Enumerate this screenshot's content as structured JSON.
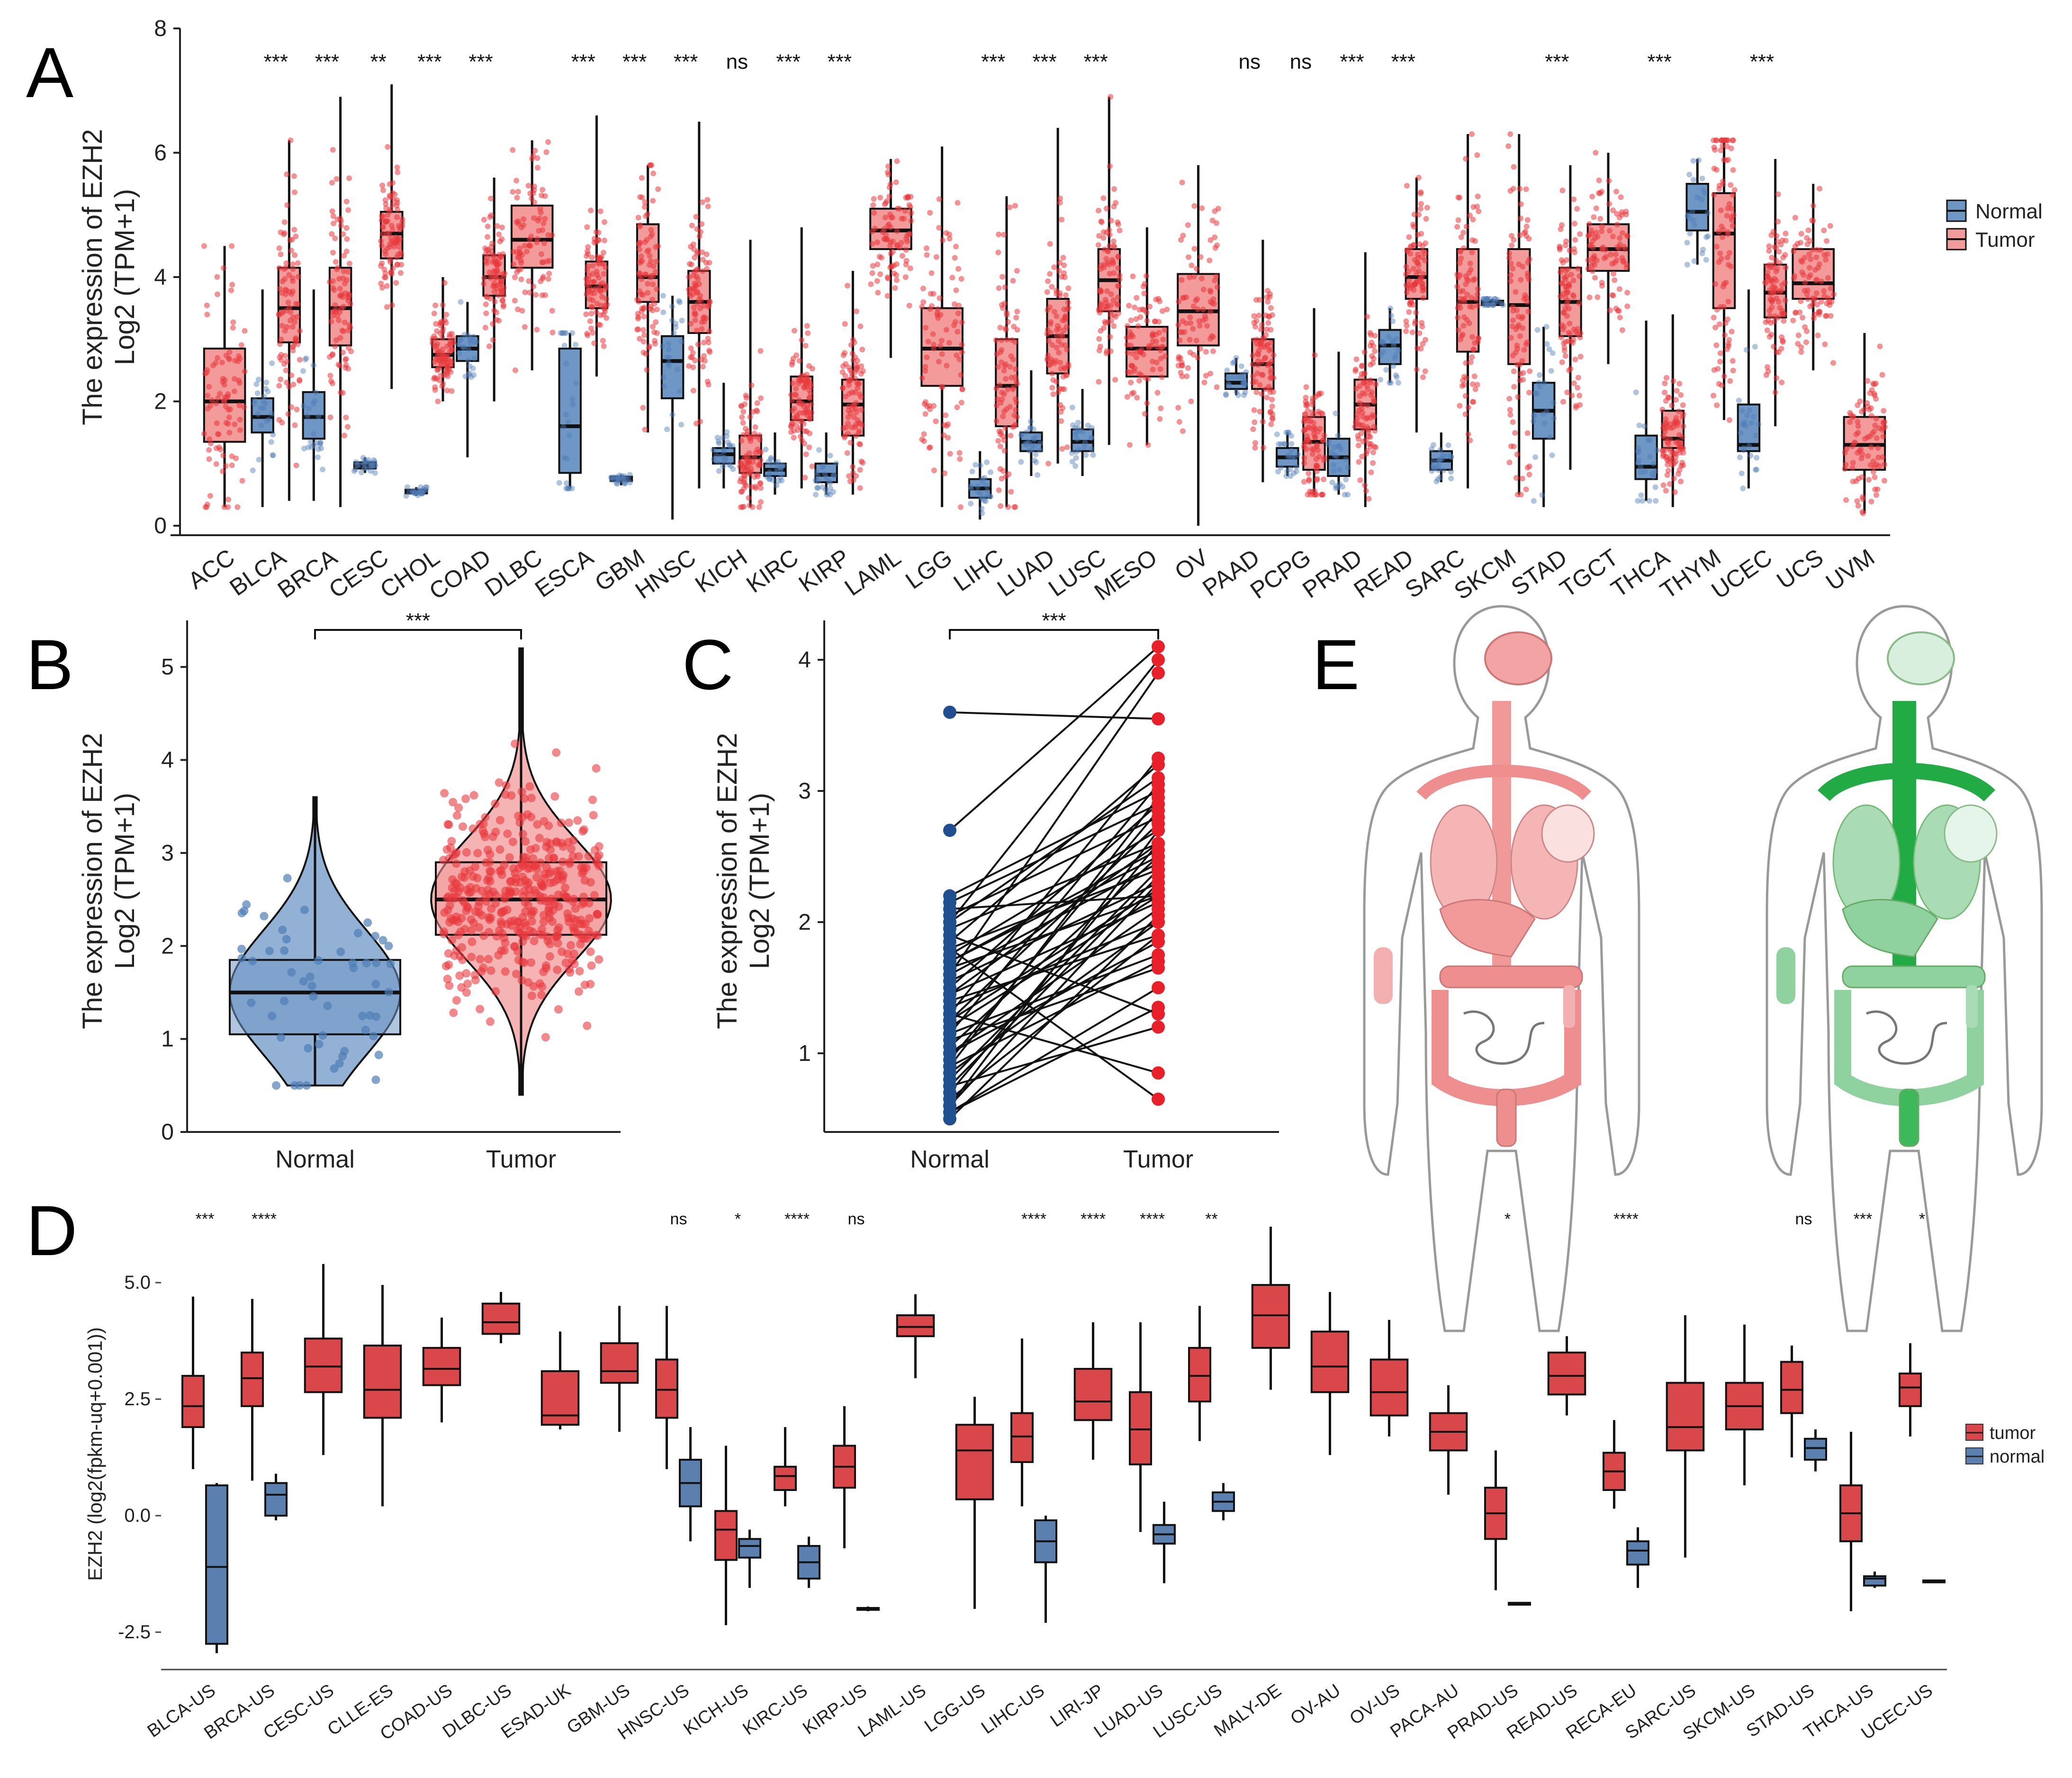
{
  "panels": {
    "A": "A",
    "B": "B",
    "C": "C",
    "D": "D",
    "E": "E"
  },
  "colors": {
    "normal": "#4f7db5",
    "tumor": "#e8383d",
    "normal_dark": "#1f4f8f",
    "tumor_light": "#f39a9a",
    "green": "#22aa44",
    "green_light": "#a9dcb5"
  },
  "chart_data": [
    {
      "id": "A",
      "type": "box",
      "ylabel_line1": "The expression of EZH2",
      "ylabel_line2": "Log2 (TPM+1)",
      "ylim": [
        0,
        8
      ],
      "yticks": [
        0,
        2,
        4,
        6,
        8
      ],
      "legend": {
        "title": "",
        "entries": [
          "Normal",
          "Tumor"
        ],
        "placement": "right"
      },
      "categories": [
        "ACC",
        "BLCA",
        "BRCA",
        "CESC",
        "CHOL",
        "COAD",
        "DLBC",
        "ESCA",
        "GBM",
        "HNSC",
        "KICH",
        "KIRC",
        "KIRP",
        "LAML",
        "LGG",
        "LIHC",
        "LUAD",
        "LUSC",
        "MESO",
        "OV",
        "PAAD",
        "PCPG",
        "PRAD",
        "READ",
        "SARC",
        "SKCM",
        "STAD",
        "TGCT",
        "THCA",
        "THYM",
        "UCEC",
        "UCS",
        "UVM"
      ],
      "significance": [
        "",
        "***",
        "***",
        "**",
        "***",
        "***",
        "",
        "***",
        "***",
        "***",
        "ns",
        "***",
        "***",
        "",
        "",
        "***",
        "***",
        "***",
        "",
        "",
        "ns",
        "ns",
        "***",
        "***",
        "",
        "",
        "***",
        "",
        "***",
        "",
        "***",
        "",
        ""
      ],
      "normal": [
        null,
        [
          0.3,
          1.5,
          1.75,
          2.05,
          3.8
        ],
        [
          0.4,
          1.4,
          1.75,
          2.15,
          3.8
        ],
        [
          0.85,
          0.92,
          0.97,
          1.02,
          1.1
        ],
        [
          0.48,
          0.52,
          0.55,
          0.58,
          0.62
        ],
        [
          1.1,
          2.65,
          2.85,
          3.05,
          3.6
        ],
        null,
        [
          0.6,
          0.85,
          1.6,
          2.85,
          3.1
        ],
        [
          0.65,
          0.72,
          0.76,
          0.79,
          0.82
        ],
        [
          0.1,
          2.05,
          2.65,
          3.05,
          3.7
        ],
        [
          0.6,
          1.0,
          1.15,
          1.25,
          2.3
        ],
        [
          0.5,
          0.8,
          0.9,
          1.0,
          1.5
        ],
        [
          0.5,
          0.7,
          0.82,
          1.0,
          1.5
        ],
        null,
        null,
        [
          0.1,
          0.45,
          0.6,
          0.75,
          1.2
        ],
        [
          0.8,
          1.2,
          1.35,
          1.5,
          2.5
        ],
        [
          0.8,
          1.2,
          1.35,
          1.55,
          2.2
        ],
        null,
        null,
        [
          2.1,
          2.2,
          2.3,
          2.45,
          2.7
        ],
        [
          0.8,
          0.95,
          1.1,
          1.25,
          1.5
        ],
        [
          0.5,
          0.8,
          1.1,
          1.4,
          2.8
        ],
        [
          2.3,
          2.6,
          2.9,
          3.15,
          3.5
        ],
        [
          0.7,
          0.9,
          1.05,
          1.2,
          1.5
        ],
        [
          3.55,
          3.55,
          3.6,
          3.62,
          3.65
        ],
        [
          0.3,
          1.4,
          1.85,
          2.3,
          3.2
        ],
        null,
        [
          0.4,
          0.75,
          0.95,
          1.45,
          3.3
        ],
        [
          4.2,
          4.75,
          5.05,
          5.5,
          5.9
        ],
        [
          0.6,
          1.2,
          1.3,
          1.95,
          3.8
        ],
        null,
        null
      ],
      "tumor": [
        [
          0.3,
          1.35,
          2.0,
          2.85,
          4.5
        ],
        [
          0.4,
          2.95,
          3.5,
          4.15,
          6.2
        ],
        [
          0.3,
          2.9,
          3.5,
          4.15,
          6.9
        ],
        [
          2.2,
          4.3,
          4.7,
          5.05,
          7.1
        ],
        [
          2.0,
          2.55,
          2.75,
          3.0,
          4.0
        ],
        [
          2.0,
          3.7,
          4.0,
          4.35,
          5.6
        ],
        [
          2.5,
          4.15,
          4.6,
          5.15,
          6.2
        ],
        [
          2.4,
          3.5,
          3.85,
          4.25,
          6.6
        ],
        [
          1.5,
          3.6,
          4.0,
          4.85,
          5.8
        ],
        [
          0.6,
          3.1,
          3.6,
          4.1,
          6.5
        ],
        [
          0.3,
          0.85,
          1.1,
          1.45,
          4.6
        ],
        [
          0.6,
          1.7,
          2.0,
          2.4,
          4.8
        ],
        [
          0.5,
          1.45,
          1.95,
          2.35,
          4.1
        ],
        [
          2.7,
          4.45,
          4.75,
          5.1,
          5.9
        ],
        [
          0.3,
          2.25,
          2.85,
          3.5,
          6.1
        ],
        [
          0.3,
          1.6,
          2.25,
          3.0,
          5.3
        ],
        [
          1.0,
          2.45,
          3.05,
          3.65,
          6.4
        ],
        [
          1.3,
          3.45,
          3.95,
          4.45,
          6.9
        ],
        [
          1.3,
          2.4,
          2.85,
          3.2,
          4.8
        ],
        [
          0.0,
          2.9,
          3.45,
          4.05,
          5.8
        ],
        [
          0.7,
          2.2,
          2.6,
          3.0,
          4.6
        ],
        [
          0.5,
          0.9,
          1.35,
          1.75,
          3.5
        ],
        [
          0.3,
          1.55,
          1.95,
          2.35,
          4.4
        ],
        [
          1.5,
          3.65,
          4.0,
          4.45,
          5.6
        ],
        [
          0.6,
          2.8,
          3.6,
          4.45,
          6.3
        ],
        [
          0.5,
          2.6,
          3.55,
          4.45,
          6.3
        ],
        [
          0.9,
          3.05,
          3.6,
          4.15,
          5.8
        ],
        [
          2.6,
          4.1,
          4.45,
          4.85,
          6.0
        ],
        [
          0.3,
          1.25,
          1.4,
          1.85,
          3.4
        ],
        [
          1.7,
          3.5,
          4.7,
          5.35,
          6.2
        ],
        [
          1.6,
          3.35,
          3.75,
          4.2,
          5.9
        ],
        [
          2.5,
          3.65,
          3.9,
          4.45,
          5.5
        ],
        [
          0.2,
          0.9,
          1.3,
          1.75,
          3.1
        ]
      ]
    },
    {
      "id": "B",
      "type": "violin-box",
      "ylabel_line1": "The expression of EZH2",
      "ylabel_line2": "Log2 (TPM+1)",
      "ylim": [
        0,
        5.5
      ],
      "yticks": [
        0,
        1,
        2,
        3,
        4,
        5
      ],
      "categories": [
        "Normal",
        "Tumor"
      ],
      "significance": "***",
      "normal": [
        0.5,
        1.05,
        1.5,
        1.85,
        3.6
      ],
      "tumor": [
        0.4,
        2.12,
        2.5,
        2.9,
        5.2
      ]
    },
    {
      "id": "C",
      "type": "paired-line",
      "ylabel_line1": "The expression of EZH2",
      "ylabel_line2": "Log2 (TPM+1)",
      "ylim": [
        0.4,
        4.3
      ],
      "yticks": [
        1,
        2,
        3,
        4
      ],
      "categories": [
        "Normal",
        "Tumor"
      ],
      "significance": "***",
      "pairs": [
        [
          3.6,
          3.55
        ],
        [
          2.7,
          4.1
        ],
        [
          2.2,
          3.0
        ],
        [
          2.15,
          2.9
        ],
        [
          2.1,
          2.2
        ],
        [
          2.05,
          2.8
        ],
        [
          2.0,
          4.0
        ],
        [
          1.95,
          2.6
        ],
        [
          1.9,
          1.3
        ],
        [
          1.85,
          3.2
        ],
        [
          1.8,
          2.4
        ],
        [
          1.75,
          2.7
        ],
        [
          1.7,
          2.5
        ],
        [
          1.65,
          2.2
        ],
        [
          1.6,
          3.9
        ],
        [
          1.55,
          2.3
        ],
        [
          1.5,
          2.9
        ],
        [
          1.45,
          2.6
        ],
        [
          1.4,
          1.9
        ],
        [
          1.35,
          2.0
        ],
        [
          1.3,
          0.85
        ],
        [
          1.25,
          2.75
        ],
        [
          1.2,
          2.2
        ],
        [
          1.15,
          3.05
        ],
        [
          1.1,
          1.65
        ],
        [
          1.05,
          2.5
        ],
        [
          1.0,
          2.1
        ],
        [
          0.95,
          2.85
        ],
        [
          0.9,
          1.7
        ],
        [
          0.85,
          2.0
        ],
        [
          0.8,
          2.4
        ],
        [
          0.75,
          1.2
        ],
        [
          0.7,
          2.6
        ],
        [
          0.65,
          1.9
        ],
        [
          0.6,
          2.3
        ],
        [
          0.55,
          1.5
        ],
        [
          0.5,
          2.05
        ],
        [
          1.8,
          0.65
        ],
        [
          1.3,
          3.25
        ],
        [
          0.9,
          2.95
        ],
        [
          1.6,
          2.45
        ],
        [
          1.0,
          1.85
        ],
        [
          0.6,
          2.7
        ],
        [
          1.45,
          2.15
        ],
        [
          2.0,
          3.1
        ],
        [
          0.75,
          2.35
        ],
        [
          1.15,
          1.75
        ],
        [
          1.7,
          2.55
        ],
        [
          0.55,
          1.35
        ],
        [
          1.25,
          2.25
        ]
      ]
    },
    {
      "id": "D",
      "type": "box",
      "ylabel": "EZH2 (log2(fpkm-uq+0.001))",
      "ylim": [
        -3.2,
        6.2
      ],
      "yticks": [
        -2.5,
        0.0,
        2.5,
        5.0
      ],
      "ytick_labels": [
        "-2.5",
        "0.0",
        "2.5",
        "5.0"
      ],
      "legend": {
        "entries": [
          "tumor",
          "normal"
        ],
        "placement": "right"
      },
      "categories": [
        "BLCA-US",
        "BRCA-US",
        "CESC-US",
        "CLLE-ES",
        "COAD-US",
        "DLBC-US",
        "ESAD-UK",
        "GBM-US",
        "HNSC-US",
        "KICH-US",
        "KIRC-US",
        "KIRP-US",
        "LAML-US",
        "LGG-US",
        "LIHC-US",
        "LIRI-JP",
        "LUAD-US",
        "LUSC-US",
        "MALY-DE",
        "OV-AU",
        "OV-US",
        "PACA-AU",
        "PRAD-US",
        "READ-US",
        "RECA-EU",
        "SARC-US",
        "SKCM-US",
        "STAD-US",
        "THCA-US",
        "UCEC-US"
      ],
      "significance": [
        "***",
        "****",
        "",
        "",
        "",
        "",
        "",
        "",
        "ns",
        "*",
        "****",
        "ns",
        "",
        "",
        "****",
        "****",
        "****",
        "**",
        "",
        "",
        "",
        "",
        "*",
        "",
        "****",
        "",
        "",
        "ns",
        "***",
        "*"
      ],
      "tumor": [
        [
          1.0,
          1.9,
          2.35,
          3.0,
          4.7
        ],
        [
          0.75,
          2.35,
          2.95,
          3.5,
          4.65
        ],
        [
          1.3,
          2.65,
          3.2,
          3.8,
          5.4
        ],
        [
          0.2,
          2.1,
          2.7,
          3.65,
          4.95
        ],
        [
          2.0,
          2.8,
          3.15,
          3.6,
          4.25
        ],
        [
          3.7,
          3.9,
          4.15,
          4.55,
          4.8
        ],
        [
          1.85,
          1.95,
          2.15,
          3.1,
          3.95
        ],
        [
          1.8,
          2.85,
          3.1,
          3.7,
          4.5
        ],
        [
          1.0,
          2.1,
          2.7,
          3.35,
          4.5
        ],
        [
          -2.35,
          -0.95,
          -0.3,
          0.1,
          1.5
        ],
        [
          0.2,
          0.55,
          0.85,
          1.05,
          1.9
        ],
        [
          -0.7,
          0.6,
          1.05,
          1.5,
          2.35
        ],
        [
          2.95,
          3.85,
          4.05,
          4.3,
          4.75
        ],
        [
          -2.0,
          0.35,
          1.4,
          1.95,
          2.55
        ],
        [
          0.2,
          1.15,
          1.7,
          2.2,
          3.8
        ],
        [
          1.2,
          2.05,
          2.45,
          3.15,
          4.15
        ],
        [
          -0.35,
          1.1,
          1.85,
          2.65,
          4.15
        ],
        [
          1.6,
          2.45,
          3.0,
          3.6,
          4.5
        ],
        [
          2.7,
          3.6,
          4.3,
          4.95,
          6.2
        ],
        [
          1.3,
          2.65,
          3.2,
          3.95,
          4.8
        ],
        [
          1.7,
          2.15,
          2.65,
          3.35,
          4.2
        ],
        [
          0.45,
          1.4,
          1.8,
          2.2,
          2.8
        ],
        [
          -1.6,
          -0.5,
          0.05,
          0.6,
          1.4
        ],
        [
          2.15,
          2.6,
          3.0,
          3.5,
          3.85
        ],
        [
          0.15,
          0.55,
          0.95,
          1.35,
          2.05
        ],
        [
          -0.9,
          1.4,
          1.9,
          2.85,
          4.3
        ],
        [
          0.65,
          1.85,
          2.35,
          2.85,
          4.1
        ],
        [
          1.25,
          2.2,
          2.7,
          3.3,
          3.65
        ],
        [
          -2.05,
          -0.55,
          0.05,
          0.65,
          1.8
        ],
        [
          1.7,
          2.35,
          2.75,
          3.05,
          3.7
        ]
      ],
      "normal": [
        [
          -2.95,
          -2.75,
          -1.1,
          0.65,
          0.7
        ],
        [
          -0.1,
          0.0,
          0.45,
          0.7,
          0.9
        ],
        null,
        null,
        null,
        null,
        null,
        null,
        [
          -0.55,
          0.2,
          0.7,
          1.2,
          1.9
        ],
        [
          -1.55,
          -0.9,
          -0.65,
          -0.5,
          -0.3
        ],
        [
          -1.55,
          -1.35,
          -1.0,
          -0.65,
          -0.45
        ],
        [
          -2.05,
          -2.02,
          -2.0,
          -1.98,
          -1.95
        ],
        null,
        null,
        [
          -2.3,
          -1.0,
          -0.55,
          -0.1,
          0.0
        ],
        null,
        [
          -1.45,
          -0.6,
          -0.4,
          -0.2,
          0.3
        ],
        [
          -0.1,
          0.1,
          0.3,
          0.5,
          0.7
        ],
        null,
        null,
        null,
        null,
        [
          -1.9,
          -1.9,
          -1.88,
          -1.87,
          -1.85
        ],
        null,
        [
          -1.55,
          -1.05,
          -0.75,
          -0.55,
          -0.25
        ],
        null,
        null,
        [
          0.95,
          1.2,
          1.45,
          1.65,
          1.85
        ],
        [
          -1.55,
          -1.5,
          -1.35,
          -1.3,
          -1.2
        ],
        [
          -1.42,
          -1.41,
          -1.4,
          -1.39,
          -1.38
        ]
      ]
    }
  ]
}
